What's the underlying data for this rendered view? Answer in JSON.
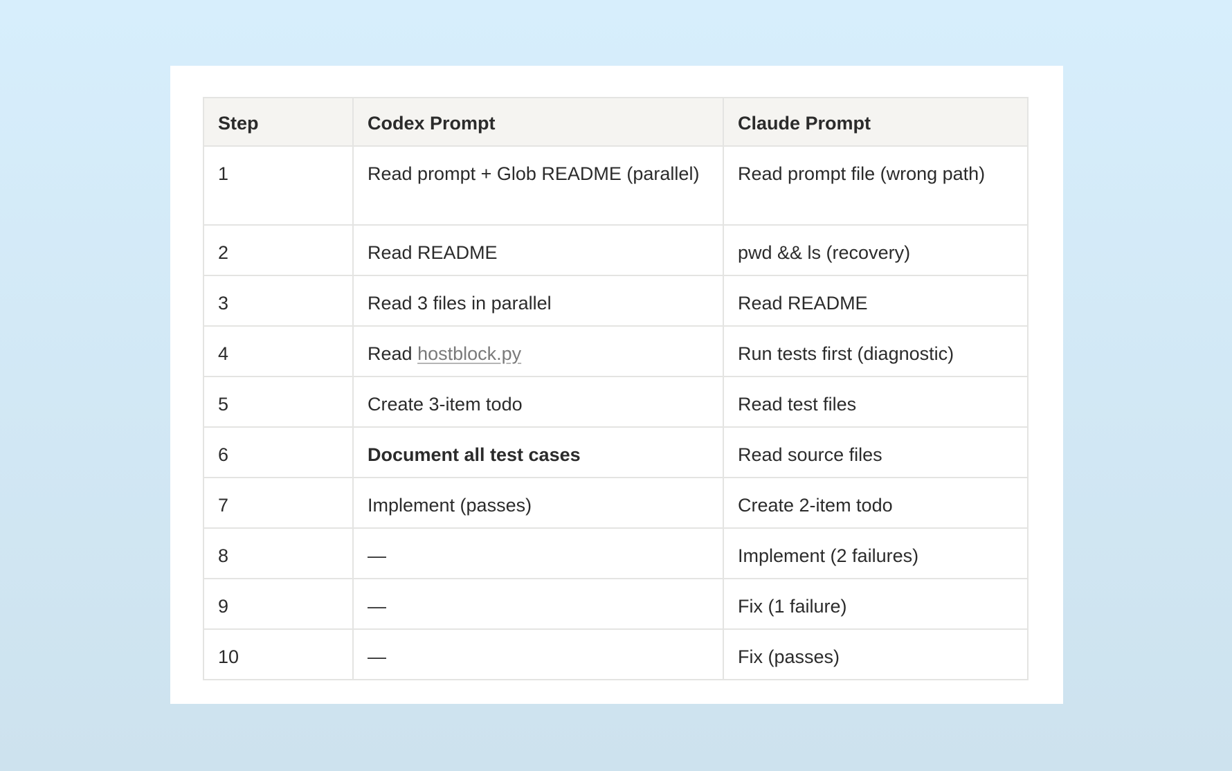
{
  "table": {
    "headers": [
      "Step",
      "Codex Prompt",
      "Claude Prompt"
    ],
    "rows": [
      {
        "step": "1",
        "codex": "Read prompt + Glob README (parallel)",
        "claude": "Read prompt file (wrong path)"
      },
      {
        "step": "2",
        "codex": "Read README",
        "claude": "pwd && ls (recovery)"
      },
      {
        "step": "3",
        "codex": "Read 3 files in parallel",
        "claude": "Read README"
      },
      {
        "step": "4",
        "codex_prefix": "Read ",
        "codex_link": "hostblock.py",
        "claude": "Run tests first (diagnostic)"
      },
      {
        "step": "5",
        "codex": "Create 3-item todo",
        "claude": "Read test files"
      },
      {
        "step": "6",
        "codex": "Document all test cases",
        "claude": "Read source files"
      },
      {
        "step": "7",
        "codex": "Implement (passes)",
        "claude": "Create 2-item todo"
      },
      {
        "step": "8",
        "codex": "—",
        "claude": "Implement (2 failures)"
      },
      {
        "step": "9",
        "codex": "—",
        "claude": "Fix (1 failure)"
      },
      {
        "step": "10",
        "codex": "—",
        "claude": "Fix (passes)"
      }
    ]
  }
}
